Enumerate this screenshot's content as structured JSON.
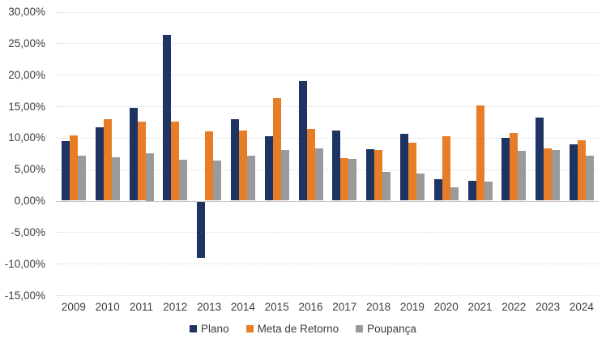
{
  "chart_data": {
    "type": "bar",
    "title": "",
    "xlabel": "",
    "ylabel": "",
    "categories": [
      "2009",
      "2010",
      "2011",
      "2012",
      "2013",
      "2014",
      "2015",
      "2016",
      "2017",
      "2018",
      "2019",
      "2020",
      "2021",
      "2022",
      "2023",
      "2024"
    ],
    "series": [
      {
        "name": "Plano",
        "color": "#1E3462",
        "values": [
          9.5,
          11.7,
          14.8,
          26.3,
          -8.9,
          13.0,
          10.2,
          19.0,
          11.2,
          8.2,
          10.6,
          3.4,
          3.1,
          10.0,
          13.2,
          8.9
        ]
      },
      {
        "name": "Meta de Retorno",
        "color": "#E87D27",
        "values": [
          10.4,
          12.9,
          12.5,
          12.6,
          11.0,
          11.2,
          16.3,
          11.4,
          6.8,
          8.1,
          9.2,
          10.2,
          15.1,
          10.7,
          8.3,
          9.6
        ]
      },
      {
        "name": "Poupança",
        "color": "#9A9A9A",
        "values": [
          7.1,
          6.9,
          7.5,
          6.5,
          6.4,
          7.1,
          8.1,
          8.3,
          6.6,
          4.6,
          4.3,
          2.1,
          3.0,
          7.9,
          8.0,
          7.1
        ]
      }
    ],
    "ylim": [
      -15,
      30
    ],
    "ytick_step": 5,
    "ytick_labels": [
      "30,00%",
      "25,00%",
      "20,00%",
      "15,00%",
      "10,00%",
      "5,00%",
      "0,00%",
      "-5,00%",
      "-10,00%",
      "-15,00%"
    ],
    "ytick_values": [
      30,
      25,
      20,
      15,
      10,
      5,
      0,
      -5,
      -10,
      -15
    ],
    "grid": true,
    "legend_position": "bottom"
  }
}
